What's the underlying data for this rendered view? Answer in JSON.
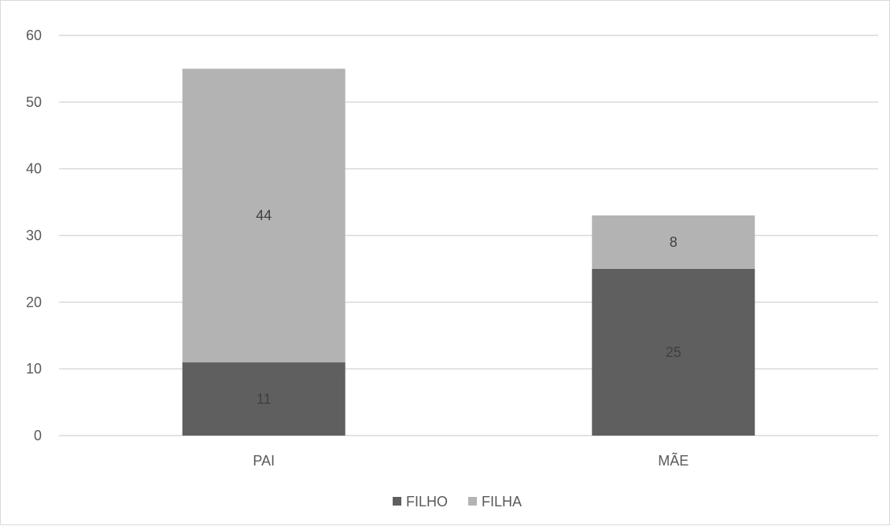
{
  "chart_data": {
    "type": "bar",
    "stacked": true,
    "categories": [
      "PAI",
      "MÃE"
    ],
    "series": [
      {
        "name": "FILHO",
        "values": [
          11,
          25
        ],
        "color": "#5f5f5f",
        "label_color": "#3f3f3f"
      },
      {
        "name": "FILHA",
        "values": [
          44,
          8
        ],
        "color": "#b3b3b3",
        "label_color": "#404040"
      }
    ],
    "ylim": [
      0,
      60
    ],
    "yticks": [
      0,
      10,
      20,
      30,
      40,
      50,
      60
    ],
    "grid": true,
    "legend_position": "bottom",
    "title": "",
    "xlabel": "",
    "ylabel": ""
  }
}
